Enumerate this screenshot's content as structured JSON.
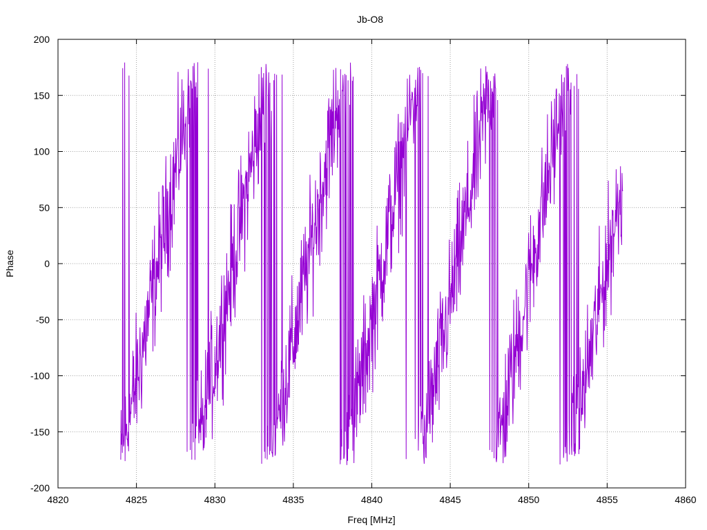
{
  "chart_data": {
    "type": "line",
    "title": "Jb-O8",
    "xlabel": "Freq [MHz]",
    "ylabel": "Phase",
    "xlim": [
      4820,
      4860
    ],
    "ylim": [
      -200,
      200
    ],
    "xticks": [
      4820,
      4825,
      4830,
      4835,
      4840,
      4845,
      4850,
      4855,
      4860
    ],
    "yticks": [
      -200,
      -150,
      -100,
      -50,
      0,
      50,
      100,
      150,
      200
    ],
    "grid": true,
    "legend": "none",
    "series": [
      {
        "color": "#9400d3",
        "x_start": 4824.0,
        "x_end": 4856.0,
        "phase_slope_deg_per_mhz": 75.5,
        "phase_offset_deg": 180,
        "noise_amplitude_deg": 28,
        "points": 1280
      }
    ]
  }
}
